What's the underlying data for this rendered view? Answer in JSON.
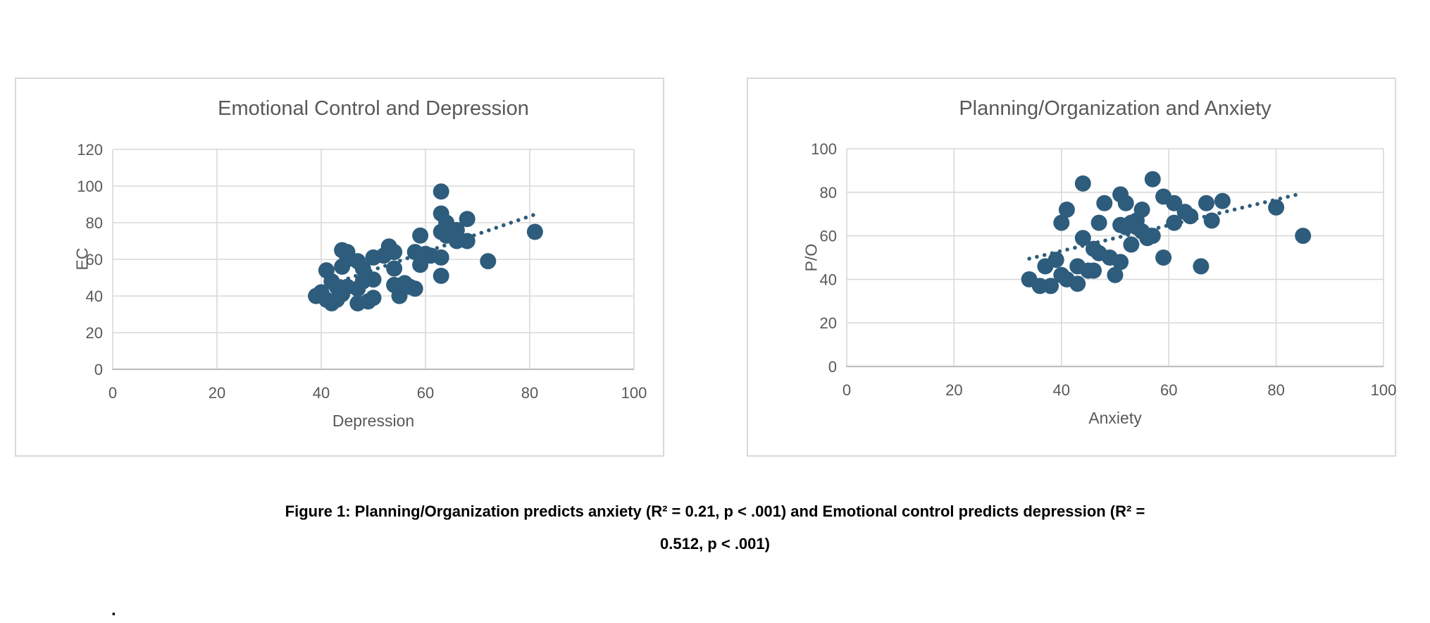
{
  "colors": {
    "dot": "#2E5C7C",
    "trendline": "#2E5C7C",
    "gridline": "#D9D9D9",
    "axis_line": "#BFBFBF",
    "label_text": "#595959",
    "panel_border": "#D9D9D9",
    "caption_text": "#000000",
    "background": "#FFFFFF"
  },
  "chart_data": [
    {
      "type": "scatter",
      "title": "Emotional Control and Depression",
      "xlabel": "Depression",
      "ylabel": "EC",
      "xlim": [
        0,
        100
      ],
      "ylim": [
        0,
        120
      ],
      "xticks": [
        0,
        20,
        40,
        60,
        80,
        100
      ],
      "yticks": [
        0,
        20,
        40,
        60,
        80,
        100,
        120
      ],
      "grid": true,
      "legend": "none",
      "marker_radius": 11.5,
      "points": [
        [
          39,
          40
        ],
        [
          40,
          42
        ],
        [
          41,
          54
        ],
        [
          41,
          38
        ],
        [
          42,
          36
        ],
        [
          43,
          38
        ],
        [
          44,
          41
        ],
        [
          42,
          48
        ],
        [
          43,
          45
        ],
        [
          45,
          45
        ],
        [
          44,
          56
        ],
        [
          44,
          65
        ],
        [
          45,
          64
        ],
        [
          45,
          60
        ],
        [
          47,
          59
        ],
        [
          47,
          44
        ],
        [
          47,
          36
        ],
        [
          48,
          55
        ],
        [
          48,
          48
        ],
        [
          49,
          37
        ],
        [
          50,
          49
        ],
        [
          50,
          39
        ],
        [
          50,
          61
        ],
        [
          52,
          62
        ],
        [
          53,
          67
        ],
        [
          54,
          64
        ],
        [
          54,
          55
        ],
        [
          54,
          46
        ],
        [
          55,
          40
        ],
        [
          56,
          47
        ],
        [
          57,
          45
        ],
        [
          58,
          44
        ],
        [
          59,
          73
        ],
        [
          58,
          64
        ],
        [
          59,
          57
        ],
        [
          60,
          63
        ],
        [
          61,
          62
        ],
        [
          63,
          61
        ],
        [
          63,
          51
        ],
        [
          63,
          97
        ],
        [
          63,
          85
        ],
        [
          64,
          80
        ],
        [
          63,
          75
        ],
        [
          64,
          73
        ],
        [
          66,
          76
        ],
        [
          66,
          70
        ],
        [
          68,
          82
        ],
        [
          68,
          70
        ],
        [
          72,
          59
        ],
        [
          81,
          75
        ]
      ],
      "trendline": {
        "style": "dotted",
        "x1": 39.5,
        "y1": 44,
        "x2": 81,
        "y2": 84.5
      }
    },
    {
      "type": "scatter",
      "title": "Planning/Organization and Anxiety",
      "xlabel": "Anxiety",
      "ylabel": "P/O",
      "xlim": [
        0,
        100
      ],
      "ylim": [
        0,
        100
      ],
      "xticks": [
        0,
        20,
        40,
        60,
        80,
        100
      ],
      "yticks": [
        0,
        20,
        40,
        60,
        80,
        100
      ],
      "grid": true,
      "legend": "none",
      "marker_radius": 11.5,
      "points": [
        [
          34,
          40
        ],
        [
          36,
          37
        ],
        [
          38,
          37
        ],
        [
          37,
          46
        ],
        [
          39,
          49
        ],
        [
          40,
          42
        ],
        [
          41,
          40
        ],
        [
          40,
          66
        ],
        [
          41,
          72
        ],
        [
          43,
          46
        ],
        [
          43,
          38
        ],
        [
          44,
          84
        ],
        [
          44,
          59
        ],
        [
          45,
          44
        ],
        [
          46,
          44
        ],
        [
          46,
          54
        ],
        [
          47,
          52
        ],
        [
          47,
          66
        ],
        [
          48,
          75
        ],
        [
          49,
          50
        ],
        [
          50,
          42
        ],
        [
          51,
          48
        ],
        [
          51,
          79
        ],
        [
          51,
          65
        ],
        [
          52,
          75
        ],
        [
          52,
          64
        ],
        [
          53,
          66
        ],
        [
          53,
          56
        ],
        [
          54,
          67
        ],
        [
          54,
          64
        ],
        [
          55,
          72
        ],
        [
          55,
          62
        ],
        [
          56,
          59
        ],
        [
          57,
          86
        ],
        [
          57,
          60
        ],
        [
          59,
          78
        ],
        [
          59,
          50
        ],
        [
          61,
          75
        ],
        [
          61,
          66
        ],
        [
          63,
          71
        ],
        [
          64,
          69
        ],
        [
          66,
          46
        ],
        [
          67,
          75
        ],
        [
          68,
          67
        ],
        [
          70,
          76
        ],
        [
          80,
          73
        ],
        [
          85,
          60
        ]
      ],
      "trendline": {
        "style": "dotted",
        "x1": 34,
        "y1": 49.5,
        "x2": 84,
        "y2": 79
      }
    }
  ],
  "caption": {
    "line1": "Figure 1: Planning/Organization predicts anxiety (R² = 0.21, p < .001) and Emotional control predicts depression (R² =",
    "line2": "0.512, p < .001)"
  },
  "stray_mark": "."
}
